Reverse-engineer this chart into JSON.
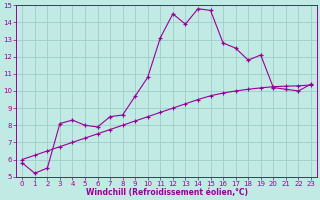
{
  "x": [
    0,
    1,
    2,
    3,
    4,
    5,
    6,
    7,
    8,
    9,
    10,
    11,
    12,
    13,
    14,
    15,
    16,
    17,
    18,
    19,
    20,
    21,
    22,
    23
  ],
  "windchill": [
    5.8,
    5.2,
    5.5,
    8.1,
    8.3,
    8.0,
    7.9,
    8.5,
    8.6,
    9.7,
    10.8,
    13.1,
    14.5,
    13.9,
    14.8,
    14.7,
    12.8,
    12.5,
    11.8,
    12.1,
    10.2,
    10.1,
    10.0,
    10.4
  ],
  "trend": [
    6.0,
    6.25,
    6.5,
    6.75,
    7.0,
    7.25,
    7.5,
    7.75,
    8.0,
    8.25,
    8.5,
    8.75,
    9.0,
    9.25,
    9.5,
    9.72,
    9.88,
    10.0,
    10.1,
    10.18,
    10.25,
    10.28,
    10.3,
    10.35
  ],
  "line_color": "#990099",
  "bg_color": "#C2EAE4",
  "grid_color": "#9ECEC8",
  "xlabel": "Windchill (Refroidissement éolien,°C)",
  "ylim": [
    5,
    15
  ],
  "xlim": [
    -0.5,
    23.5
  ],
  "yticks": [
    5,
    6,
    7,
    8,
    9,
    10,
    11,
    12,
    13,
    14,
    15
  ],
  "xticks": [
    0,
    1,
    2,
    3,
    4,
    5,
    6,
    7,
    8,
    9,
    10,
    11,
    12,
    13,
    14,
    15,
    16,
    17,
    18,
    19,
    20,
    21,
    22,
    23
  ],
  "tick_fontsize": 5.0,
  "xlabel_fontsize": 5.5,
  "marker": "+"
}
